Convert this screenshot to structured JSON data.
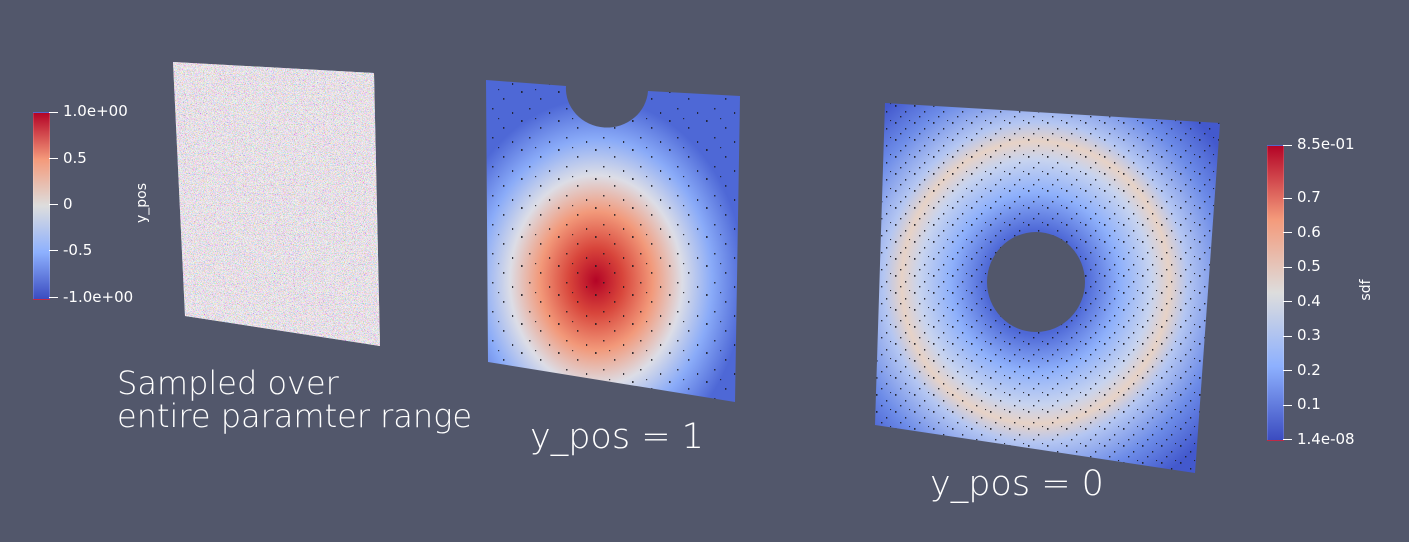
{
  "scene": {
    "background": "#52576b",
    "colormap": "coolwarm",
    "colors": {
      "low": "#3b4cc0",
      "mid": "#dddddd",
      "high": "#b40426",
      "speckle": "#1b1b22"
    }
  },
  "left_panel": {
    "caption_line1": "Sampled over",
    "caption_line2": "entire paramter range",
    "colorbar": {
      "title": "y_pos",
      "ticks": [
        "1.0e+00",
        "0.5",
        "0",
        "-0.5",
        "-1.0e+00"
      ],
      "range": [
        -1.0,
        1.0
      ]
    }
  },
  "middle_panel": {
    "caption": "y_pos = 1",
    "parameter": "y_pos",
    "value": 1
  },
  "right_panel": {
    "caption": "y_pos = 0",
    "parameter": "y_pos",
    "value": 0,
    "colorbar": {
      "title": "sdf",
      "ticks": [
        "8.5e-01",
        "0.7",
        "0.6",
        "0.5",
        "0.4",
        "0.3",
        "0.2",
        "0.1",
        "1.4e-08"
      ],
      "range": [
        1.4e-08,
        0.85
      ]
    }
  }
}
